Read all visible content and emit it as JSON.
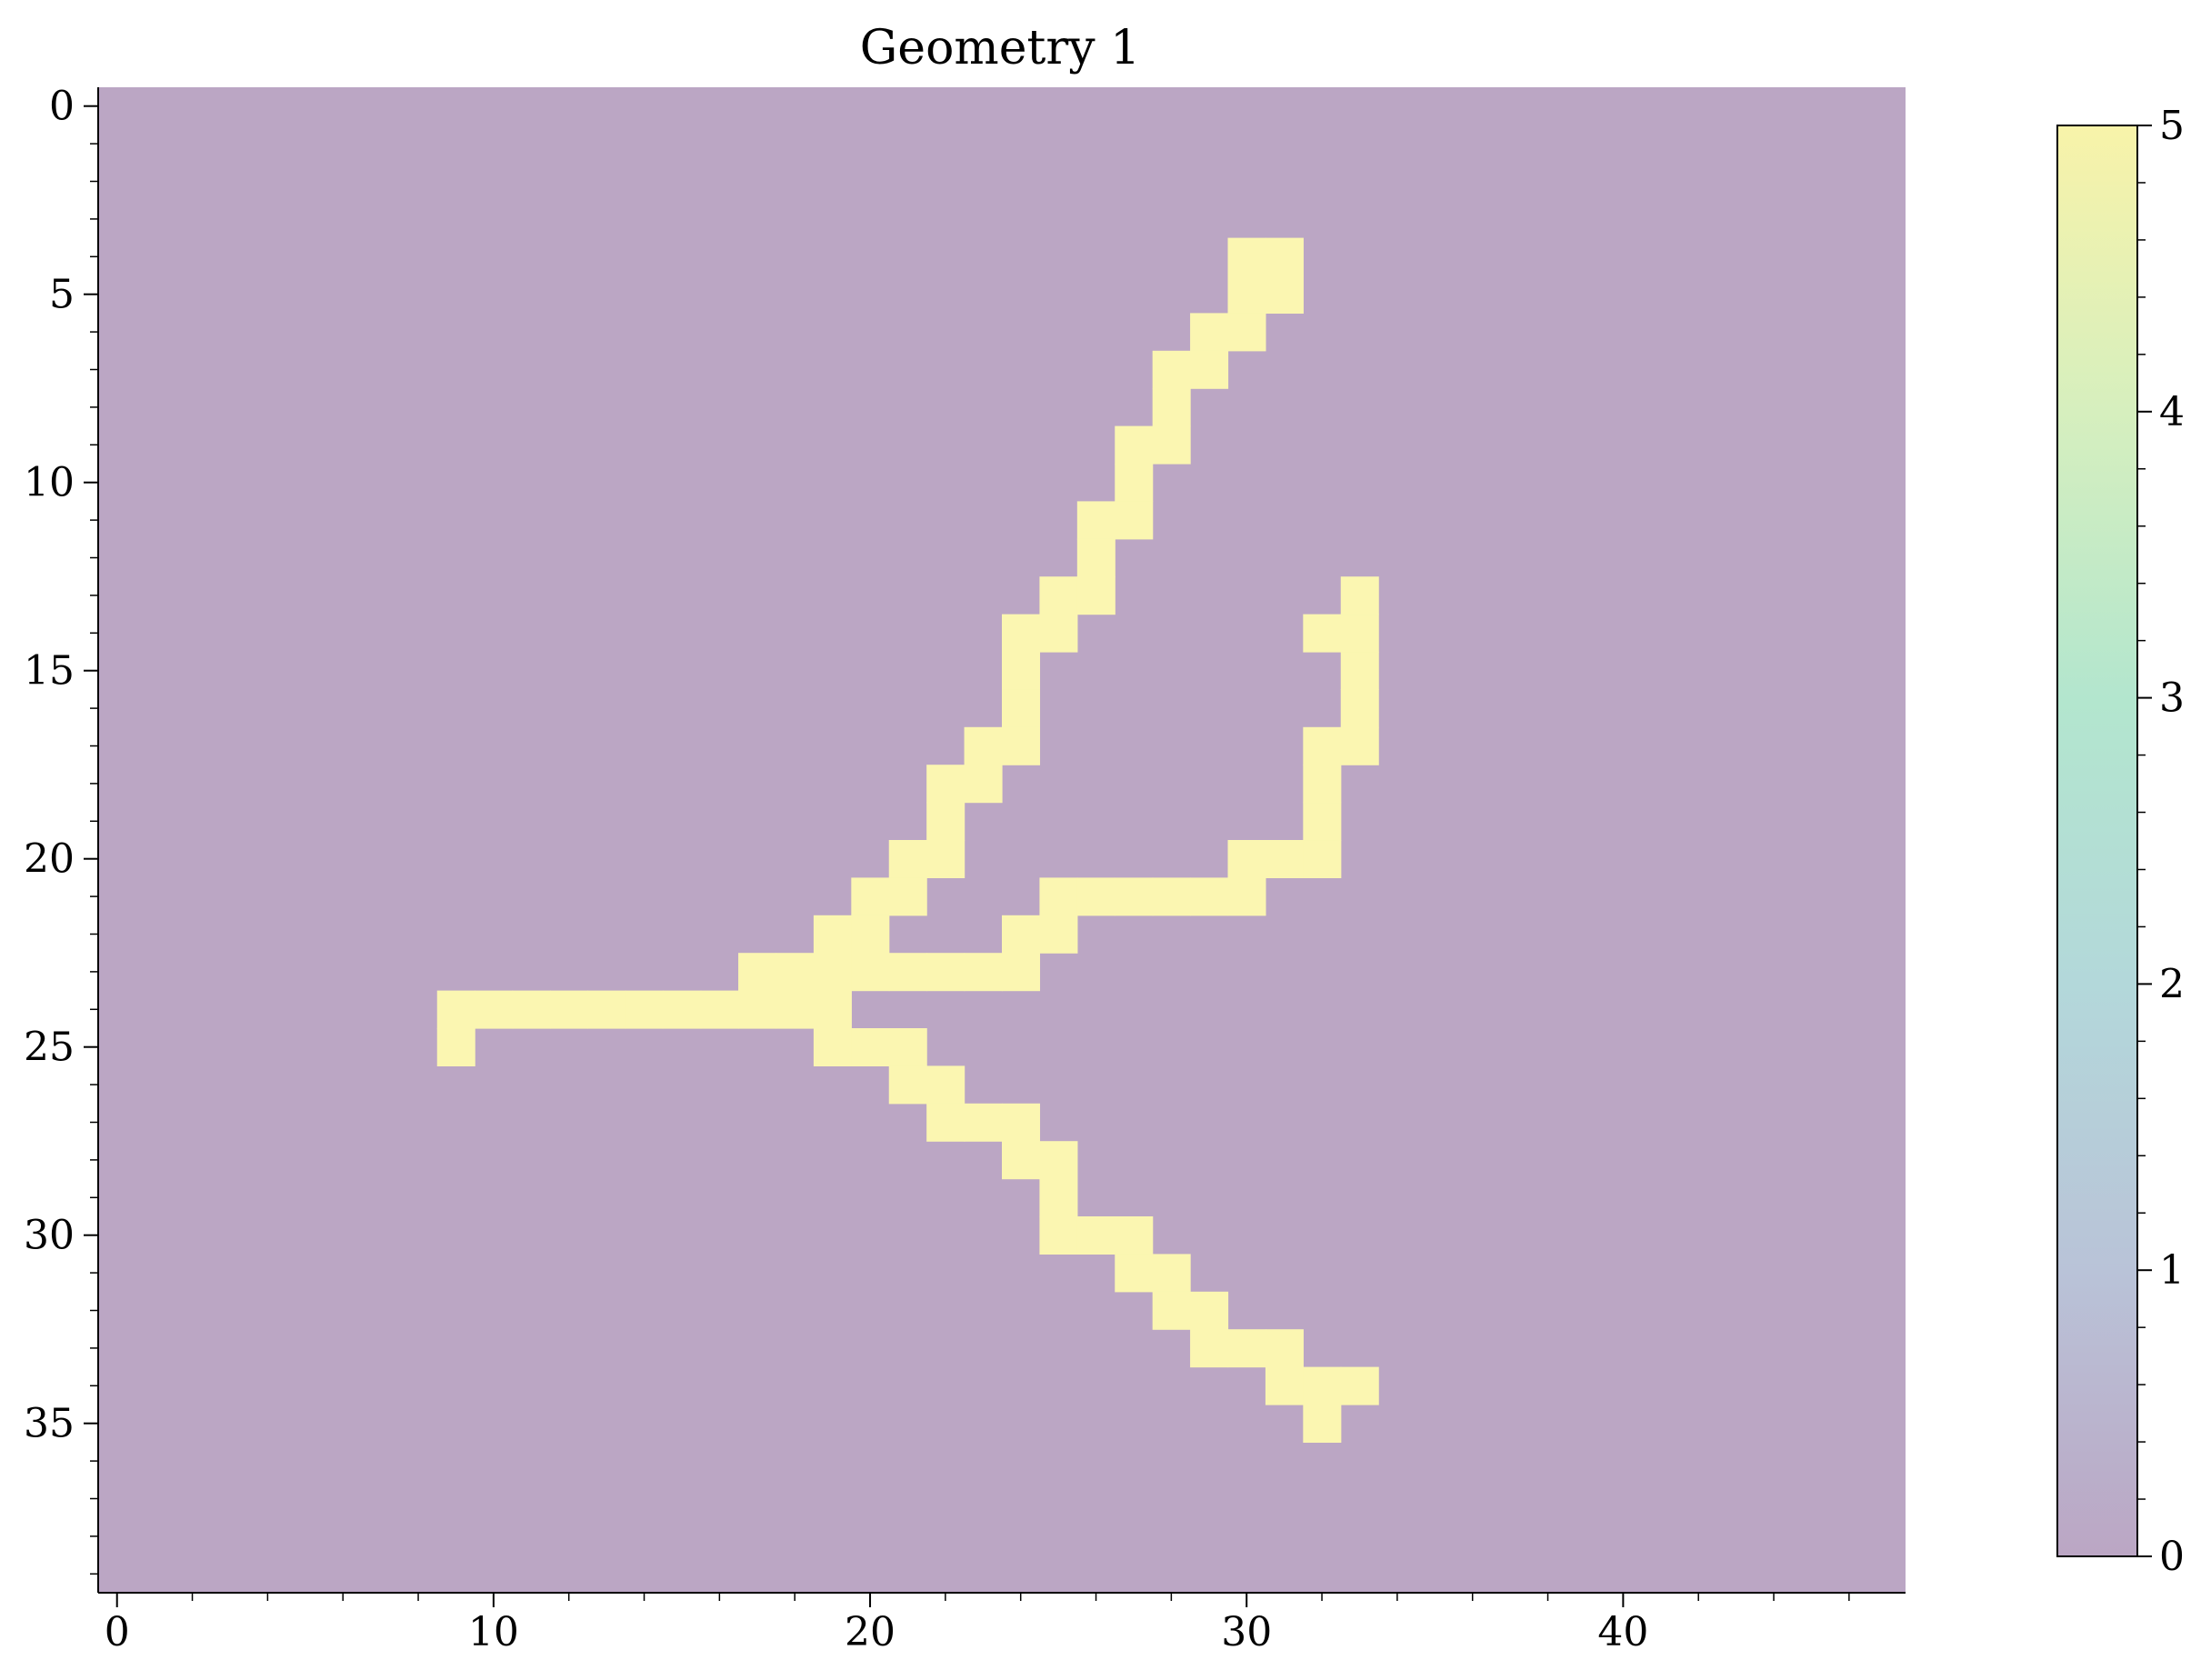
{
  "chart_data": {
    "type": "heatmap",
    "title": "Geometry 1",
    "xlabel": "",
    "ylabel": "",
    "grid": false,
    "x_ticks": [
      0,
      10,
      20,
      30,
      40
    ],
    "y_ticks": [
      0,
      5,
      10,
      15,
      20,
      25,
      30,
      35
    ],
    "xlim": [
      -0.5,
      47.5
    ],
    "ylim": [
      39.5,
      -0.5
    ],
    "n_cols": 48,
    "n_rows": 40,
    "background_value": 0,
    "foreground_value": 5,
    "cells": [
      [
        4,
        30
      ],
      [
        4,
        31
      ],
      [
        5,
        30
      ],
      [
        5,
        31
      ],
      [
        6,
        29
      ],
      [
        6,
        30
      ],
      [
        7,
        28
      ],
      [
        7,
        29
      ],
      [
        8,
        28
      ],
      [
        9,
        27
      ],
      [
        9,
        28
      ],
      [
        10,
        27
      ],
      [
        11,
        26
      ],
      [
        11,
        27
      ],
      [
        12,
        26
      ],
      [
        13,
        25
      ],
      [
        13,
        26
      ],
      [
        14,
        24
      ],
      [
        14,
        25
      ],
      [
        15,
        24
      ],
      [
        16,
        24
      ],
      [
        17,
        23
      ],
      [
        17,
        24
      ],
      [
        18,
        22
      ],
      [
        18,
        23
      ],
      [
        19,
        22
      ],
      [
        20,
        21
      ],
      [
        20,
        22
      ],
      [
        21,
        20
      ],
      [
        21,
        21
      ],
      [
        22,
        19
      ],
      [
        22,
        20
      ],
      [
        23,
        17
      ],
      [
        23,
        18
      ],
      [
        23,
        19
      ],
      [
        24,
        9
      ],
      [
        24,
        10
      ],
      [
        24,
        11
      ],
      [
        24,
        12
      ],
      [
        24,
        13
      ],
      [
        24,
        14
      ],
      [
        24,
        15
      ],
      [
        24,
        16
      ],
      [
        24,
        17
      ],
      [
        24,
        18
      ],
      [
        24,
        19
      ],
      [
        25,
        9
      ],
      [
        23,
        20
      ],
      [
        23,
        21
      ],
      [
        23,
        22
      ],
      [
        23,
        23
      ],
      [
        23,
        24
      ],
      [
        22,
        24
      ],
      [
        22,
        25
      ],
      [
        21,
        25
      ],
      [
        21,
        26
      ],
      [
        21,
        27
      ],
      [
        21,
        28
      ],
      [
        21,
        29
      ],
      [
        21,
        30
      ],
      [
        20,
        30
      ],
      [
        20,
        31
      ],
      [
        20,
        32
      ],
      [
        19,
        32
      ],
      [
        18,
        32
      ],
      [
        17,
        32
      ],
      [
        17,
        33
      ],
      [
        16,
        33
      ],
      [
        15,
        33
      ],
      [
        14,
        32
      ],
      [
        14,
        33
      ],
      [
        13,
        33
      ],
      [
        25,
        19
      ],
      [
        25,
        20
      ],
      [
        25,
        21
      ],
      [
        26,
        21
      ],
      [
        26,
        22
      ],
      [
        27,
        22
      ],
      [
        27,
        23
      ],
      [
        27,
        24
      ],
      [
        28,
        24
      ],
      [
        28,
        25
      ],
      [
        29,
        25
      ],
      [
        30,
        25
      ],
      [
        30,
        26
      ],
      [
        30,
        27
      ],
      [
        31,
        27
      ],
      [
        31,
        28
      ],
      [
        32,
        28
      ],
      [
        32,
        29
      ],
      [
        33,
        29
      ],
      [
        33,
        30
      ],
      [
        33,
        31
      ],
      [
        34,
        31
      ],
      [
        34,
        32
      ],
      [
        34,
        33
      ],
      [
        35,
        32
      ]
    ],
    "colorbar": {
      "ticks": [
        0,
        1,
        2,
        3,
        4,
        5
      ],
      "min": 0,
      "max": 5
    }
  },
  "colors": {
    "background_cell": "#bba6c4",
    "foreground_cell": "#fbf6b1",
    "colorbar_stops": [
      "#bba6c4",
      "#b9c3d8",
      "#b3d8da",
      "#b3e6ce",
      "#d6efbe",
      "#f8f3a9"
    ]
  }
}
